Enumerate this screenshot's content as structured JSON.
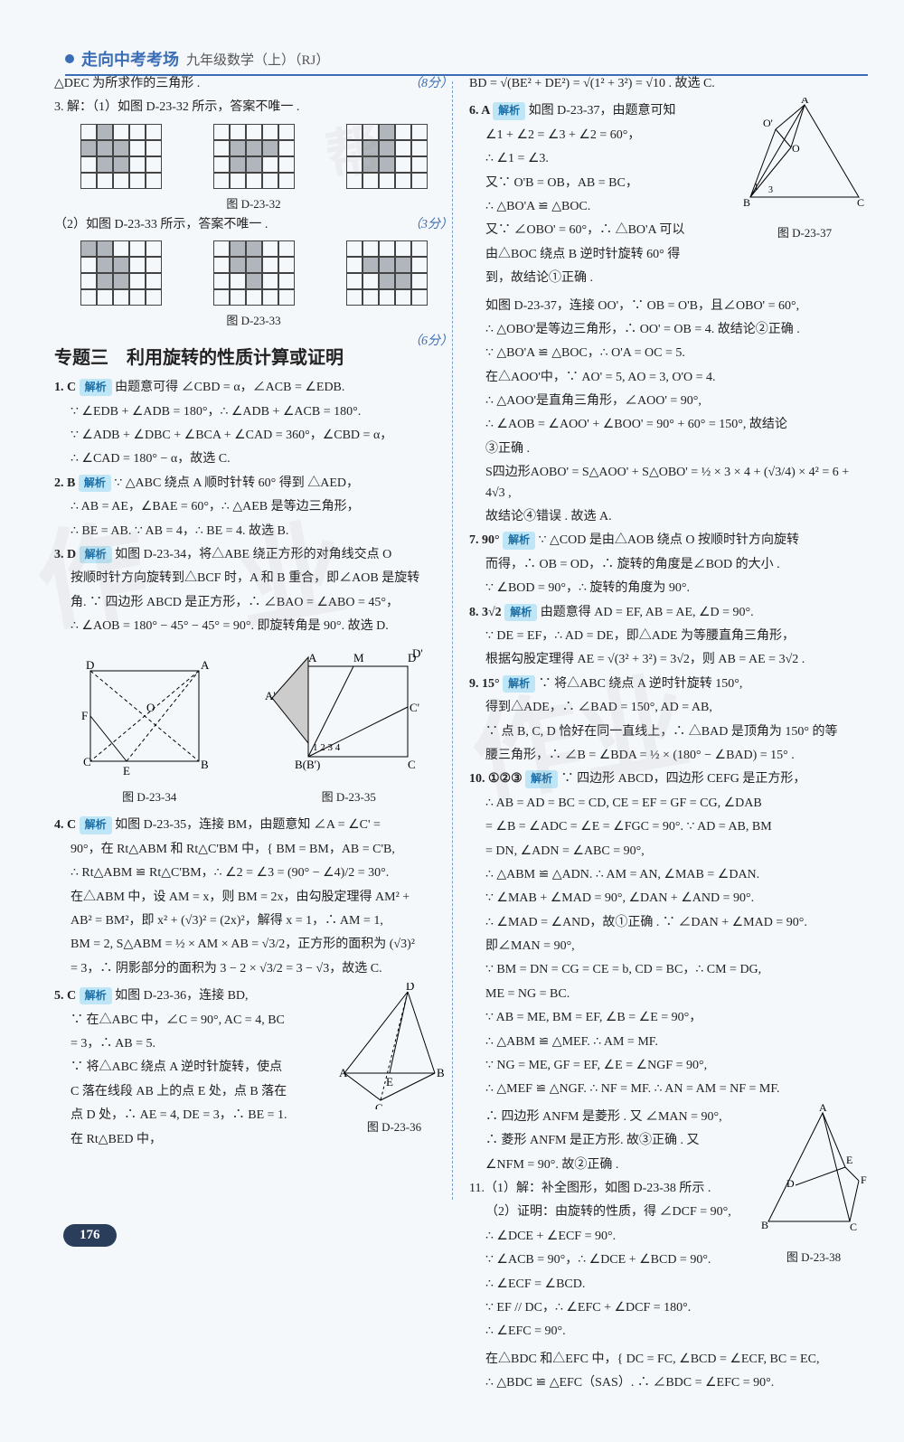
{
  "header": {
    "title": "走向中考考场",
    "subtitle": "九年级数学（上）（RJ）"
  },
  "page_number": "176",
  "watermarks": [
    "作",
    "业",
    "作业",
    "帮"
  ],
  "left": {
    "l1": "△DEC 为所求作的三角形 .",
    "score1": "（8分）",
    "l2": "3. 解：（1）如图 D-23-32 所示，答案不唯一 .",
    "cap1": "图 D-23-32",
    "score2": "（3分）",
    "l3": "（2）如图 D-23-33 所示，答案不唯一 .",
    "cap2": "图 D-23-33",
    "score3": "（6分）",
    "section": "专题三　利用旋转的性质计算或证明",
    "p1a": "1. C ",
    "p1jx": "解析",
    "p1b": " 由题意可得 ∠CBD = α，∠ACB = ∠EDB.",
    "p1c": "∵ ∠EDB + ∠ADB = 180°，∴ ∠ADB + ∠ACB = 180°.",
    "p1d": "∵ ∠ADB + ∠DBC + ∠BCA + ∠CAD = 360°，∠CBD = α，",
    "p1e": "∴ ∠CAD = 180° − α，故选 C.",
    "p2a": "2. B ",
    "p2jx": "解析",
    "p2b": " ∵ △ABC 绕点 A 顺时针转 60° 得到 △AED，",
    "p2c": "∴ AB = AE，∠BAE = 60°，∴ △AEB 是等边三角形，",
    "p2d": "∴ BE = AB. ∵ AB = 4，∴ BE = 4. 故选 B.",
    "p3a": "3. D ",
    "p3jx": "解析",
    "p3b": " 如图 D-23-34，将△ABE 绕正方形的对角线交点 O",
    "p3c": "按顺时针方向旋转到△BCF 时，A 和 B 重合，即∠AOB 是旋转",
    "p3d": "角. ∵ 四边形 ABCD 是正方形，∴ ∠BAO = ∠ABO = 45°，",
    "p3e": "∴ ∠AOB = 180° − 45° − 45° = 90°. 即旋转角是 90°. 故选 D.",
    "cap3": "图 D-23-34",
    "cap4": "图 D-23-35",
    "p4a": "4. C ",
    "p4jx": "解析",
    "p4b": " 如图 D-23-35，连接 BM，由题意知 ∠A = ∠C' =",
    "p4c": "90°，在 Rt△ABM 和 Rt△C'BM 中，{ BM = BM，AB = C'B,",
    "p4d": "∴ Rt△ABM ≌ Rt△C'BM，∴ ∠2 = ∠3 = (90° − ∠4)/2 = 30°.",
    "p4e": "在△ABM 中，设 AM = x，则 BM = 2x，由勾股定理得 AM² +",
    "p4f": "AB² = BM²，即 x² + (√3)² = (2x)²，解得 x = 1，∴ AM = 1,",
    "p4g": "BM = 2, S△ABM = ½ × AM × AB = √3/2，正方形的面积为 (√3)²",
    "p4h": "= 3，∴ 阴影部分的面积为 3 − 2 × √3/2 = 3 − √3，故选 C.",
    "p5a": "5. C ",
    "p5jx": "解析",
    "p5b": " 如图 D-23-36，连接 BD,",
    "p5c": "∵ 在△ABC 中，∠C = 90°, AC = 4, BC",
    "p5d": "= 3，∴ AB = 5.",
    "p5e": "∵ 将△ABC 绕点 A 逆时针旋转，使点",
    "p5f": "C 落在线段 AB 上的点 E 处，点 B 落在",
    "p5g": "点 D 处，∴ AE = 4, DE = 3，∴ BE = 1.",
    "p5h": "在 Rt△BED 中，",
    "cap5": "图 D-23-36"
  },
  "right": {
    "r0": "BD = √(BE² + DE²) = √(1² + 3²) = √10 . 故选 C.",
    "p6a": "6. A ",
    "p6jx": "解析",
    "p6b": " 如图 D-23-37，由题意可知",
    "p6c": "∠1 + ∠2 = ∠3 + ∠2 = 60°，",
    "p6d": "∴ ∠1 = ∠3.",
    "p6e": "又∵ O'B = OB，AB = BC，",
    "p6f": "∴ △BO'A ≌ △BOC.",
    "p6g": "又∵ ∠OBO' = 60°，∴ △BO'A 可以",
    "p6h": "由△BOC 绕点 B 逆时针旋转 60° 得",
    "p6i": "到，故结论①正确 .",
    "cap6": "图 D-23-37",
    "p6j": "如图 D-23-37，连接 OO'，∵ OB = O'B，且∠OBO' = 60°,",
    "p6k": "∴ △OBO'是等边三角形，∴ OO' = OB = 4. 故结论②正确 .",
    "p6l": "∵ △BO'A ≌ △BOC，∴ O'A = OC = 5.",
    "p6m": "在△AOO'中，∵ AO' = 5, AO = 3, O'O = 4.",
    "p6n": "∴ △AOO'是直角三角形，∠AOO' = 90°,",
    "p6o": "∴ ∠AOB = ∠AOO' + ∠BOO' = 90° + 60° = 150°, 故结论",
    "p6p": "③正确 .",
    "p6q": "S四边形AOBO' = S△AOO' + S△OBO' = ½ × 3 × 4 + (√3/4) × 4² = 6 + 4√3 ,",
    "p6r": "故结论④错误 . 故选 A.",
    "p7a": "7. 90° ",
    "p7jx": "解析",
    "p7b": " ∵ △COD 是由△AOB 绕点 O 按顺时针方向旋转",
    "p7c": "而得，∴ OB = OD，∴ 旋转的角度是∠BOD 的大小 .",
    "p7d": "∵ ∠BOD = 90°，∴ 旋转的角度为 90°.",
    "p8a": "8. 3√2 ",
    "p8jx": "解析",
    "p8b": " 由题意得 AD = EF, AB = AE, ∠D = 90°.",
    "p8c": "∵ DE = EF，∴ AD = DE，即△ADE 为等腰直角三角形，",
    "p8d": "根据勾股定理得 AE = √(3² + 3²) = 3√2，则 AB = AE = 3√2 .",
    "p9a": "9. 15° ",
    "p9jx": "解析",
    "p9b": " ∵ 将△ABC 绕点 A 逆时针旋转 150°,",
    "p9c": "得到△ADE，∴ ∠BAD = 150°, AD = AB,",
    "p9d": "∵ 点 B, C, D 恰好在同一直线上，∴ △BAD 是顶角为 150° 的等",
    "p9e": "腰三角形，∴ ∠B = ∠BDA = ½ × (180° − ∠BAD) = 15° .",
    "p10a": "10. ①②③ ",
    "p10jx": "解析",
    "p10b": " ∵ 四边形 ABCD，四边形 CEFG 是正方形，",
    "p10c": "∴ AB = AD = BC = CD, CE = EF = GF = CG, ∠DAB",
    "p10d": "= ∠B = ∠ADC = ∠E = ∠FGC = 90°. ∵ AD = AB, BM",
    "p10e": "= DN, ∠ADN = ∠ABC = 90°,",
    "p10f": "∴ △ABM ≌ △ADN. ∴ AM = AN, ∠MAB = ∠DAN.",
    "p10g": "∵ ∠MAB + ∠MAD = 90°, ∠DAN + ∠AND = 90°.",
    "p10h": "∴ ∠MAD = ∠AND，故①正确 . ∵ ∠DAN + ∠MAD = 90°.",
    "p10i": "即∠MAN = 90°,",
    "p10j": "∵ BM = DN = CG = CE = b, CD = BC，∴ CM = DG,",
    "p10k": "ME = NG = BC.",
    "p10l": "∵ AB = ME, BM = EF, ∠B = ∠E = 90°，",
    "p10m": "∴ △ABM ≌ △MEF. ∴ AM = MF.",
    "p10n": "∵ NG = ME, GF = EF, ∠E = ∠NGF = 90°,",
    "p10o": "∴ △MEF ≌ △NGF. ∴ NF = MF. ∴ AN = AM = NF = MF.",
    "p10p": "∴ 四边形 ANFM 是菱形 . 又 ∠MAN = 90°,",
    "p10q": "∴ 菱形 ANFM 是正方形. 故③正确 . 又",
    "p10r": "∠NFM = 90°. 故②正确 .",
    "p11a": "11.（1）解：补全图形，如图 D-23-38 所示 .",
    "p11b": "（2）证明：由旋转的性质，得 ∠DCF = 90°,",
    "p11c": "∴ ∠DCE + ∠ECF = 90°.",
    "p11d": "∵ ∠ACB = 90°，∴ ∠DCE + ∠BCD = 90°.",
    "p11e": "∴ ∠ECF = ∠BCD.",
    "p11f": "∵ EF // DC，∴ ∠EFC + ∠DCF = 180°.",
    "p11g": "∴ ∠EFC = 90°.",
    "cap7": "图 D-23-38",
    "p11h": "在△BDC 和△EFC 中，{ DC = FC, ∠BCD = ∠ECF, BC = EC,",
    "p11i": "∴ △BDC ≌ △EFC（SAS）. ∴ ∠BDC = ∠EFC = 90°."
  },
  "grids": {
    "g32": [
      [
        [
          0,
          1,
          0,
          0,
          0
        ],
        [
          1,
          1,
          1,
          0,
          0
        ],
        [
          0,
          1,
          1,
          0,
          0
        ],
        [
          0,
          0,
          0,
          0,
          0
        ]
      ],
      [
        [
          0,
          0,
          0,
          0,
          0
        ],
        [
          0,
          1,
          1,
          1,
          0
        ],
        [
          0,
          1,
          1,
          0,
          0
        ],
        [
          0,
          0,
          0,
          0,
          0
        ]
      ],
      [
        [
          0,
          0,
          1,
          0,
          0
        ],
        [
          0,
          1,
          1,
          0,
          0
        ],
        [
          0,
          1,
          1,
          0,
          0
        ],
        [
          0,
          0,
          0,
          0,
          0
        ]
      ]
    ],
    "g33": [
      [
        [
          1,
          1,
          0,
          0,
          0
        ],
        [
          0,
          1,
          1,
          0,
          0
        ],
        [
          0,
          1,
          1,
          0,
          0
        ],
        [
          0,
          0,
          0,
          0,
          0
        ]
      ],
      [
        [
          0,
          1,
          1,
          0,
          0
        ],
        [
          0,
          1,
          1,
          0,
          0
        ],
        [
          0,
          0,
          1,
          0,
          0
        ],
        [
          0,
          0,
          0,
          0,
          0
        ]
      ],
      [
        [
          0,
          0,
          0,
          0,
          0
        ],
        [
          0,
          1,
          1,
          1,
          0
        ],
        [
          0,
          0,
          1,
          1,
          0
        ],
        [
          0,
          0,
          0,
          0,
          0
        ]
      ]
    ]
  },
  "colors": {
    "accent": "#3a6db5",
    "jx_bg": "#bfe6f7",
    "jx_fg": "#1b6fa6",
    "grid_fill": "#b0b6bc"
  }
}
